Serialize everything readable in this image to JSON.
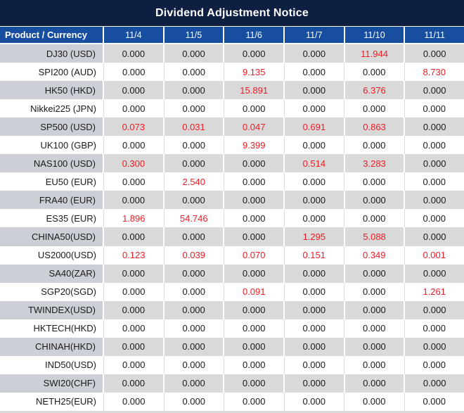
{
  "title": "Dividend Adjustment Notice",
  "colors": {
    "title_bg": "#0e1f42",
    "header_bg": "#174e9f",
    "row_gray": "#d9d9d9",
    "product_gray": "#ccd0d6",
    "row_white": "#ffffff",
    "value_red": "#ee1c25",
    "ink": "#1a1a1a",
    "header_text": "#ffffff"
  },
  "chart_data": {
    "type": "table",
    "title": "Dividend Adjustment Notice",
    "columns": [
      "Product / Currency",
      "11/4",
      "11/5",
      "11/6",
      "11/7",
      "11/10",
      "11/11"
    ],
    "rows": [
      {
        "product": "DJ30 (USD)",
        "values": [
          "0.000",
          "0.000",
          "0.000",
          "0.000",
          "11.944",
          "0.000"
        ],
        "red": [
          0,
          0,
          0,
          0,
          1,
          0
        ]
      },
      {
        "product": "SPI200 (AUD)",
        "values": [
          "0.000",
          "0.000",
          "9.135",
          "0.000",
          "0.000",
          "8.730"
        ],
        "red": [
          0,
          0,
          1,
          0,
          0,
          1
        ]
      },
      {
        "product": "HK50 (HKD)",
        "values": [
          "0.000",
          "0.000",
          "15.891",
          "0.000",
          "6.376",
          "0.000"
        ],
        "red": [
          0,
          0,
          1,
          0,
          1,
          0
        ]
      },
      {
        "product": "Nikkei225 (JPN)",
        "values": [
          "0.000",
          "0.000",
          "0.000",
          "0.000",
          "0.000",
          "0.000"
        ],
        "red": [
          0,
          0,
          0,
          0,
          0,
          0
        ]
      },
      {
        "product": "SP500 (USD)",
        "values": [
          "0.073",
          "0.031",
          "0.047",
          "0.691",
          "0.863",
          "0.000"
        ],
        "red": [
          1,
          1,
          1,
          1,
          1,
          0
        ]
      },
      {
        "product": "UK100 (GBP)",
        "values": [
          "0.000",
          "0.000",
          "9.399",
          "0.000",
          "0.000",
          "0.000"
        ],
        "red": [
          0,
          0,
          1,
          0,
          0,
          0
        ]
      },
      {
        "product": "NAS100 (USD)",
        "values": [
          "0.300",
          "0.000",
          "0.000",
          "0.514",
          "3.283",
          "0.000"
        ],
        "red": [
          1,
          0,
          0,
          1,
          1,
          0
        ]
      },
      {
        "product": "EU50 (EUR)",
        "values": [
          "0.000",
          "2.540",
          "0.000",
          "0.000",
          "0.000",
          "0.000"
        ],
        "red": [
          0,
          1,
          0,
          0,
          0,
          0
        ]
      },
      {
        "product": "FRA40 (EUR)",
        "values": [
          "0.000",
          "0.000",
          "0.000",
          "0.000",
          "0.000",
          "0.000"
        ],
        "red": [
          0,
          0,
          0,
          0,
          0,
          0
        ]
      },
      {
        "product": "ES35 (EUR)",
        "values": [
          "1.896",
          "54.746",
          "0.000",
          "0.000",
          "0.000",
          "0.000"
        ],
        "red": [
          1,
          1,
          0,
          0,
          0,
          0
        ]
      },
      {
        "product": "CHINA50(USD)",
        "values": [
          "0.000",
          "0.000",
          "0.000",
          "1.295",
          "5.088",
          "0.000"
        ],
        "red": [
          0,
          0,
          0,
          1,
          1,
          0
        ]
      },
      {
        "product": "US2000(USD)",
        "values": [
          "0.123",
          "0.039",
          "0.070",
          "0.151",
          "0.349",
          "0.001"
        ],
        "red": [
          1,
          1,
          1,
          1,
          1,
          1
        ]
      },
      {
        "product": "SA40(ZAR)",
        "values": [
          "0.000",
          "0.000",
          "0.000",
          "0.000",
          "0.000",
          "0.000"
        ],
        "red": [
          0,
          0,
          0,
          0,
          0,
          0
        ]
      },
      {
        "product": "SGP20(SGD)",
        "values": [
          "0.000",
          "0.000",
          "0.091",
          "0.000",
          "0.000",
          "1.261"
        ],
        "red": [
          0,
          0,
          1,
          0,
          0,
          1
        ]
      },
      {
        "product": "TWINDEX(USD)",
        "values": [
          "0.000",
          "0.000",
          "0.000",
          "0.000",
          "0.000",
          "0.000"
        ],
        "red": [
          0,
          0,
          0,
          0,
          0,
          0
        ]
      },
      {
        "product": "HKTECH(HKD)",
        "values": [
          "0.000",
          "0.000",
          "0.000",
          "0.000",
          "0.000",
          "0.000"
        ],
        "red": [
          0,
          0,
          0,
          0,
          0,
          0
        ]
      },
      {
        "product": "CHINAH(HKD)",
        "values": [
          "0.000",
          "0.000",
          "0.000",
          "0.000",
          "0.000",
          "0.000"
        ],
        "red": [
          0,
          0,
          0,
          0,
          0,
          0
        ]
      },
      {
        "product": "IND50(USD)",
        "values": [
          "0.000",
          "0.000",
          "0.000",
          "0.000",
          "0.000",
          "0.000"
        ],
        "red": [
          0,
          0,
          0,
          0,
          0,
          0
        ]
      },
      {
        "product": "SWI20(CHF)",
        "values": [
          "0.000",
          "0.000",
          "0.000",
          "0.000",
          "0.000",
          "0.000"
        ],
        "red": [
          0,
          0,
          0,
          0,
          0,
          0
        ]
      },
      {
        "product": "NETH25(EUR)",
        "values": [
          "0.000",
          "0.000",
          "0.000",
          "0.000",
          "0.000",
          "0.000"
        ],
        "red": [
          0,
          0,
          0,
          0,
          0,
          0
        ]
      }
    ]
  }
}
